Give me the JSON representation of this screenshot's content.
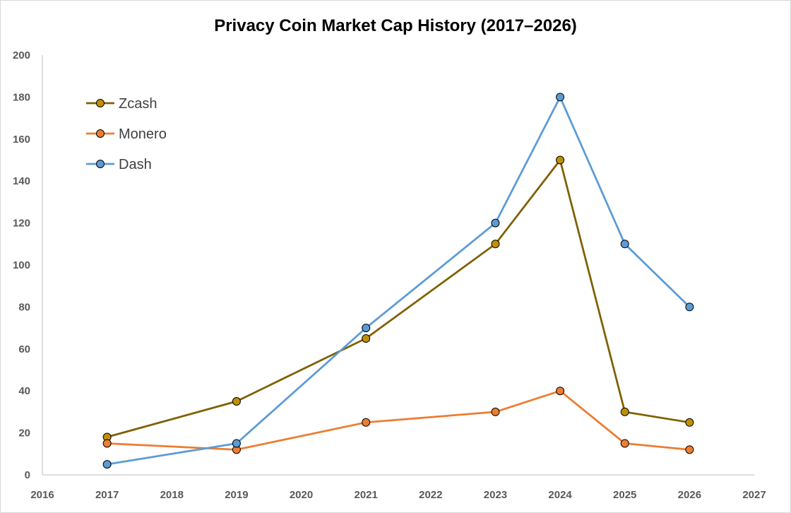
{
  "chart_data": {
    "type": "line",
    "title": "Privacy Coin Market Cap History (2017–2026)",
    "xlabel": "",
    "ylabel": "",
    "xlim": [
      2016,
      2027
    ],
    "ylim": [
      0,
      200
    ],
    "x_ticks": [
      2016,
      2017,
      2018,
      2019,
      2020,
      2021,
      2022,
      2023,
      2024,
      2025,
      2026,
      2027
    ],
    "y_ticks": [
      0,
      20,
      40,
      60,
      80,
      100,
      120,
      140,
      160,
      180,
      200
    ],
    "grid": false,
    "legend_position": "top-left",
    "series": [
      {
        "name": "Zcash",
        "color": "#7f6000",
        "marker_fill": "#bf9000",
        "points": [
          [
            2017,
            18
          ],
          [
            2019,
            35
          ],
          [
            2021,
            65
          ],
          [
            2023,
            110
          ],
          [
            2024,
            150
          ],
          [
            2025,
            30
          ],
          [
            2026,
            25
          ]
        ]
      },
      {
        "name": "Monero",
        "color": "#ed7d31",
        "marker_fill": "#ed7d31",
        "points": [
          [
            2017,
            15
          ],
          [
            2019,
            12
          ],
          [
            2021,
            25
          ],
          [
            2023,
            30
          ],
          [
            2024,
            40
          ],
          [
            2025,
            15
          ],
          [
            2026,
            12
          ]
        ]
      },
      {
        "name": "Dash",
        "color": "#5b9bd5",
        "marker_fill": "#5b9bd5",
        "points": [
          [
            2017,
            5
          ],
          [
            2019,
            15
          ],
          [
            2021,
            70
          ],
          [
            2023,
            120
          ],
          [
            2024,
            180
          ],
          [
            2025,
            110
          ],
          [
            2026,
            80
          ]
        ]
      }
    ]
  }
}
